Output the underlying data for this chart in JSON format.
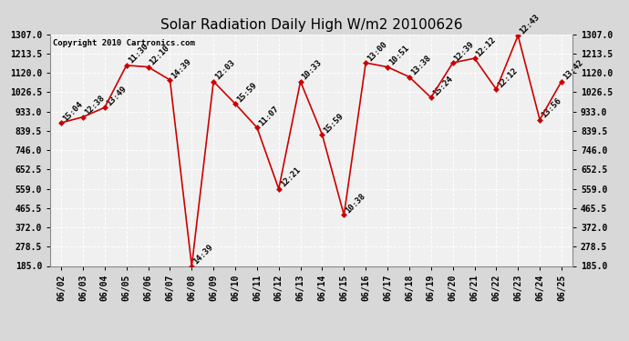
{
  "title": "Solar Radiation Daily High W/m2 20100626",
  "copyright": "Copyright 2010 Cartronics.com",
  "dates": [
    "06/02",
    "06/03",
    "06/04",
    "06/05",
    "06/06",
    "06/07",
    "06/08",
    "06/09",
    "06/10",
    "06/11",
    "06/12",
    "06/13",
    "06/14",
    "06/15",
    "06/16",
    "06/17",
    "06/18",
    "06/19",
    "06/20",
    "06/21",
    "06/22",
    "06/23",
    "06/24",
    "06/25"
  ],
  "values": [
    878,
    906,
    952,
    1156,
    1148,
    1085,
    185,
    1078,
    970,
    855,
    558,
    1078,
    820,
    432,
    1168,
    1148,
    1100,
    1000,
    1168,
    1190,
    1040,
    1300,
    893,
    1078
  ],
  "times": [
    "15:04",
    "12:38",
    "13:49",
    "11:30",
    "12:10",
    "14:39",
    "14:39",
    "12:03",
    "15:59",
    "11:07",
    "12:21",
    "10:33",
    "15:59",
    "10:38",
    "13:00",
    "10:51",
    "13:38",
    "15:24",
    "12:39",
    "12:12",
    "12:12",
    "12:43",
    "13:56",
    "13:42"
  ],
  "line_color": "#cc0000",
  "marker_color": "#cc0000",
  "bg_color": "#d8d8d8",
  "plot_bg_color": "#f0f0f0",
  "grid_color": "#ffffff",
  "text_color": "#000000",
  "ylim_min": 185.0,
  "ylim_max": 1307.0,
  "yticks": [
    185.0,
    278.5,
    372.0,
    465.5,
    559.0,
    652.5,
    746.0,
    839.5,
    933.0,
    1026.5,
    1120.0,
    1213.5,
    1307.0
  ],
  "title_fontsize": 11,
  "tick_fontsize": 7,
  "label_fontsize": 6.5
}
